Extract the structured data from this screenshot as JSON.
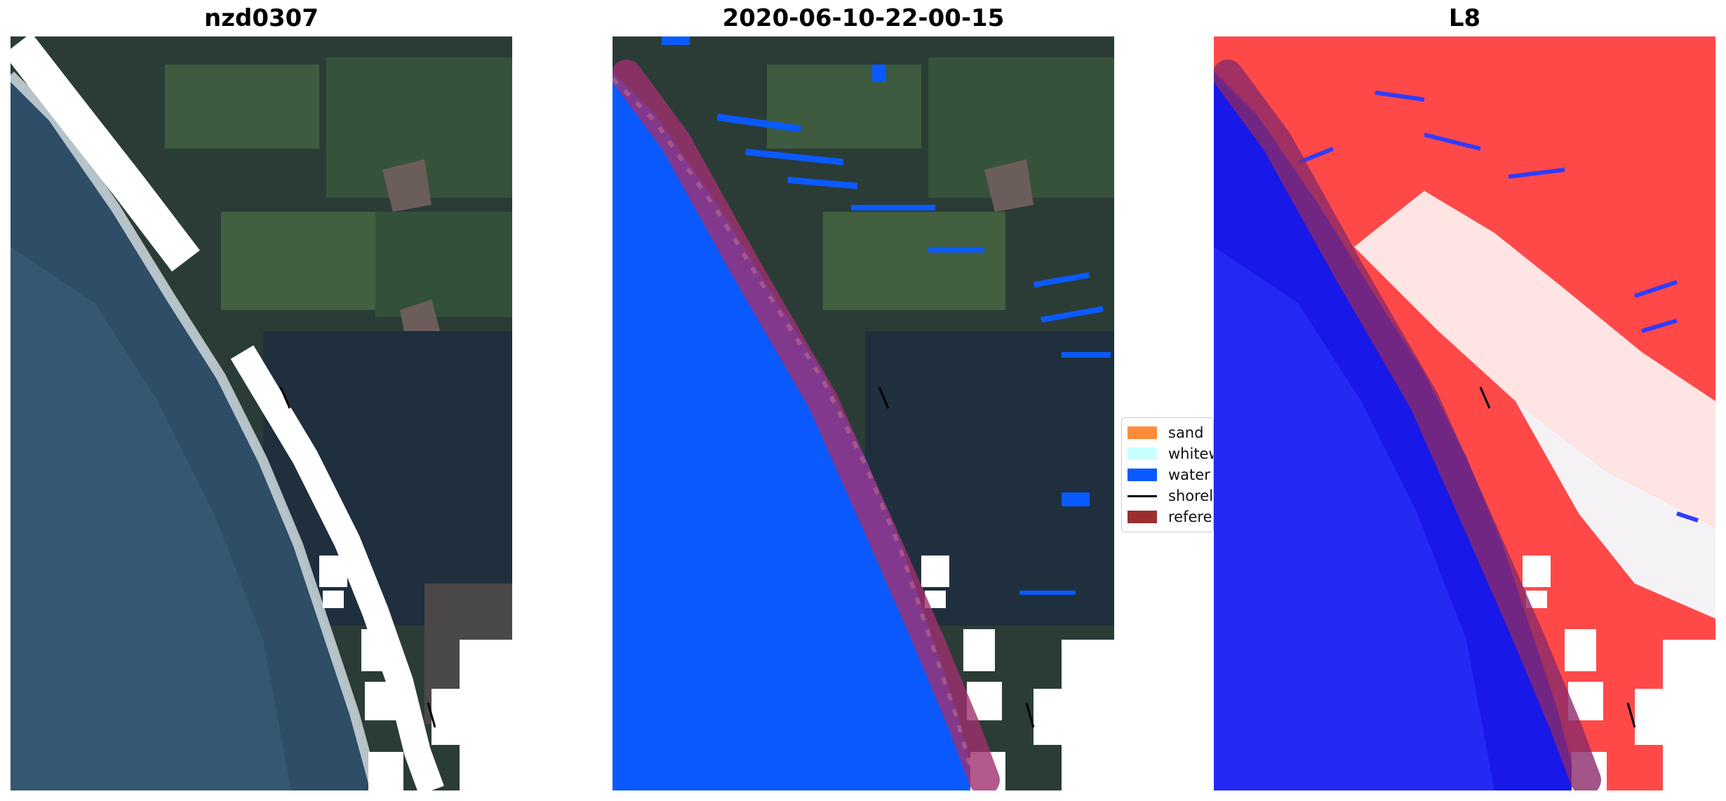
{
  "panels": [
    {
      "title": "nzd0307"
    },
    {
      "title": "2020-06-10-22-00-15"
    },
    {
      "title": "L8"
    }
  ],
  "legend": {
    "items": [
      {
        "label": "sand",
        "color": "#ff8c3a"
      },
      {
        "label": "whitewater",
        "color": "#c8ffff"
      },
      {
        "label": "water",
        "color": "#0a5aff"
      },
      {
        "label": "shoreline",
        "color": "#000000"
      },
      {
        "label": "reference shoreline",
        "color": "#9b2f2f"
      }
    ]
  },
  "colors": {
    "ocean_rgb": "#2e4d66",
    "land_forest": "#233344",
    "land_field": "#3d5a3f",
    "cloud_mask": "#ffffff",
    "water_class": "#0a5aff",
    "buffer": "#a0306f",
    "mndwi_positive": "#1818e8",
    "mndwi_negative": "#ff1a1a"
  }
}
